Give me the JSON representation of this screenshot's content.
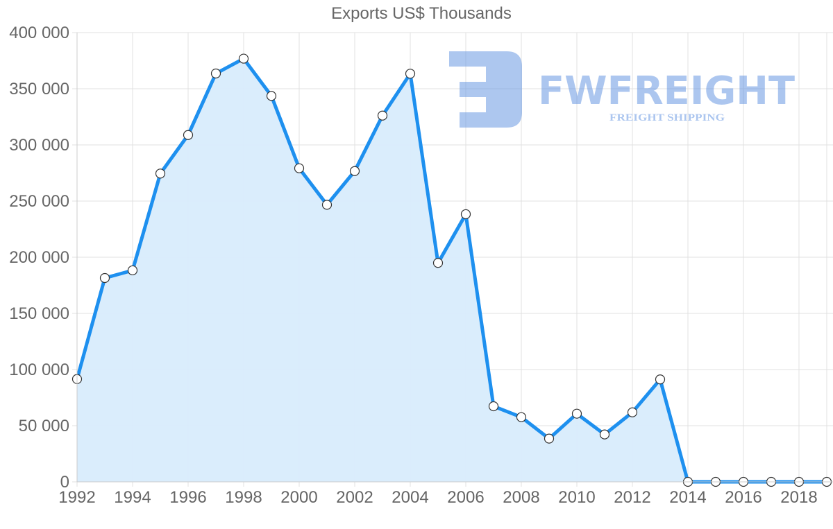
{
  "chart_data": {
    "type": "area",
    "title": "Exports US$ Thousands",
    "xlabel": "",
    "ylabel": "",
    "x": [
      1992,
      1993,
      1994,
      1995,
      1996,
      1997,
      1998,
      1999,
      2000,
      2001,
      2002,
      2003,
      2004,
      2005,
      2006,
      2007,
      2008,
      2009,
      2010,
      2011,
      2012,
      2013,
      2014,
      2015,
      2016,
      2017,
      2018,
      2019
    ],
    "series": [
      {
        "name": "Exports",
        "values": [
          91500,
          181500,
          188300,
          274500,
          308800,
          363600,
          376800,
          343600,
          279200,
          246700,
          276700,
          326100,
          363400,
          194900,
          238300,
          67300,
          57600,
          38500,
          60700,
          42200,
          61900,
          91200,
          0,
          0,
          0,
          0,
          0,
          0
        ]
      }
    ],
    "ylim": [
      0,
      400000
    ],
    "yticks": [
      0,
      50000,
      100000,
      150000,
      200000,
      250000,
      300000,
      350000,
      400000
    ],
    "ytick_labels": [
      "0",
      "50 000",
      "100 000",
      "150 000",
      "200 000",
      "250 000",
      "300 000",
      "350 000",
      "400 000"
    ],
    "xticks": [
      1992,
      1994,
      1996,
      1998,
      2000,
      2002,
      2004,
      2006,
      2008,
      2010,
      2012,
      2014,
      2016,
      2018
    ],
    "xtick_labels": [
      "1992",
      "1994",
      "1996",
      "1998",
      "2000",
      "2002",
      "2004",
      "2006",
      "2008",
      "2010",
      "2012",
      "2014",
      "2016",
      "2018"
    ],
    "grid": true,
    "legend": null,
    "colors": {
      "line": "#1e90ef",
      "fill": "#d8ecfc",
      "grid": "#e1e1e1",
      "marker_fill": "#ffffff",
      "marker_stroke": "#333333",
      "text": "#666666"
    }
  },
  "watermark": {
    "brand": "FWFREIGHT",
    "tagline": "FREIGHT SHIPPING",
    "color": "#5b8fe0"
  }
}
